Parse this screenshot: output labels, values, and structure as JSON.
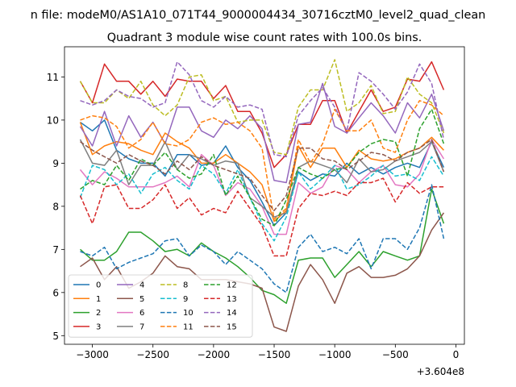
{
  "chart_data": {
    "type": "line",
    "suptitle": "n file: modeM0/AS1A10_071T44_9000004434_30716cztM0_level2_quad_clean",
    "title": "Quadrant 3 module wise count rates with 100.0s bins.",
    "xlabel": "",
    "ylabel": "",
    "offset_text": "+3.604e8",
    "xlim": [
      -3230,
      70
    ],
    "ylim": [
      4.8,
      11.7
    ],
    "xticks": [
      -3000,
      -2500,
      -2000,
      -1500,
      -1000,
      -500,
      0
    ],
    "xtick_labels": [
      "−3000",
      "−2500",
      "−2000",
      "−1500",
      "−1000",
      "−500",
      "0"
    ],
    "yticks": [
      5,
      6,
      7,
      8,
      9,
      10,
      11
    ],
    "ytick_labels": [
      "5",
      "6",
      "7",
      "8",
      "9",
      "10",
      "11"
    ],
    "grid": false,
    "legend_position": "lower-left",
    "legend_columns": 4,
    "x": [
      -3100,
      -3000,
      -2900,
      -2800,
      -2700,
      -2600,
      -2500,
      -2400,
      -2300,
      -2200,
      -2100,
      -2000,
      -1900,
      -1800,
      -1700,
      -1600,
      -1500,
      -1400,
      -1300,
      -1200,
      -1100,
      -1000,
      -900,
      -800,
      -700,
      -600,
      -500,
      -400,
      -300,
      -200,
      -100
    ],
    "series": [
      {
        "name": "0",
        "color": "#1f77b4",
        "style": "solid",
        "values": [
          9.95,
          9.75,
          10.0,
          9.3,
          9.1,
          9.0,
          9.0,
          8.7,
          9.2,
          9.2,
          8.95,
          9.0,
          9.4,
          8.9,
          8.6,
          8.1,
          7.55,
          7.85,
          8.8,
          8.6,
          8.75,
          8.7,
          9.0,
          8.75,
          8.9,
          8.75,
          8.9,
          9.0,
          8.9,
          9.5,
          8.9
        ]
      },
      {
        "name": "1",
        "color": "#ff7f0e",
        "style": "solid",
        "values": [
          9.95,
          9.2,
          9.4,
          9.5,
          9.45,
          9.3,
          9.2,
          9.7,
          9.5,
          9.35,
          9.0,
          9.0,
          9.2,
          9.0,
          8.8,
          8.5,
          7.65,
          7.9,
          9.4,
          8.9,
          9.35,
          9.35,
          8.9,
          9.3,
          9.1,
          9.05,
          9.1,
          9.25,
          9.35,
          9.6,
          9.3
        ]
      },
      {
        "name": "2",
        "color": "#2ca02c",
        "style": "solid",
        "values": [
          7.0,
          6.75,
          6.75,
          6.95,
          7.4,
          7.4,
          7.2,
          6.95,
          7.0,
          6.85,
          7.15,
          6.95,
          6.8,
          6.6,
          6.35,
          6.05,
          5.95,
          5.75,
          6.75,
          6.8,
          6.8,
          6.35,
          6.65,
          6.95,
          6.6,
          6.95,
          6.85,
          6.75,
          6.85,
          8.4,
          7.6
        ]
      },
      {
        "name": "3",
        "color": "#d62728",
        "style": "solid",
        "values": [
          10.9,
          10.4,
          11.3,
          10.9,
          10.9,
          10.6,
          10.9,
          10.55,
          10.95,
          10.9,
          10.9,
          10.5,
          10.8,
          10.2,
          10.2,
          9.7,
          8.9,
          9.2,
          9.9,
          9.9,
          10.45,
          10.45,
          9.7,
          10.2,
          10.7,
          10.2,
          10.3,
          10.95,
          10.9,
          11.35,
          10.7
        ]
      },
      {
        "name": "4",
        "color": "#9467bd",
        "style": "solid",
        "values": [
          9.85,
          9.4,
          10.2,
          9.4,
          10.1,
          9.6,
          9.95,
          9.45,
          10.3,
          10.3,
          9.75,
          9.6,
          10.0,
          9.8,
          10.1,
          9.8,
          8.6,
          8.55,
          9.9,
          9.95,
          10.85,
          9.85,
          9.7,
          10.05,
          10.4,
          10.1,
          9.7,
          10.4,
          10.05,
          10.6,
          9.75
        ]
      },
      {
        "name": "5",
        "color": "#8c564b",
        "style": "solid",
        "values": [
          6.6,
          6.8,
          6.3,
          6.6,
          6.1,
          6.25,
          6.45,
          6.85,
          6.6,
          6.55,
          6.3,
          6.3,
          6.3,
          6.25,
          6.2,
          6.1,
          5.2,
          5.1,
          6.15,
          6.65,
          6.3,
          5.75,
          6.45,
          6.6,
          6.35,
          6.35,
          6.4,
          6.55,
          6.85,
          7.45,
          7.85
        ]
      },
      {
        "name": "6",
        "color": "#e377c2",
        "style": "solid",
        "values": [
          8.85,
          8.5,
          8.8,
          8.65,
          8.45,
          8.45,
          8.45,
          8.55,
          8.7,
          8.45,
          9.2,
          8.95,
          8.25,
          8.55,
          8.4,
          8.0,
          7.35,
          7.35,
          8.55,
          8.3,
          8.45,
          8.95,
          8.85,
          8.55,
          8.8,
          8.95,
          8.5,
          8.45,
          8.75,
          9.55,
          9.1
        ]
      },
      {
        "name": "7",
        "color": "#7f7f7f",
        "style": "solid",
        "values": [
          9.55,
          9.0,
          8.95,
          9.3,
          8.5,
          8.95,
          8.95,
          9.5,
          8.85,
          9.2,
          9.1,
          8.95,
          9.05,
          9.0,
          8.2,
          8.0,
          7.75,
          7.85,
          8.9,
          9.05,
          8.95,
          8.85,
          8.55,
          9.1,
          8.8,
          8.85,
          9.05,
          9.15,
          9.25,
          9.5,
          8.8
        ]
      },
      {
        "name": "8",
        "color": "#bcbd22",
        "style": "dashed",
        "values": [
          10.9,
          10.4,
          10.4,
          10.7,
          10.5,
          10.9,
          10.35,
          10.1,
          10.35,
          11.0,
          11.05,
          10.45,
          10.55,
          9.95,
          10.0,
          10.0,
          9.25,
          9.2,
          10.3,
          10.7,
          10.7,
          11.4,
          10.2,
          10.4,
          10.8,
          10.15,
          10.2,
          11.0,
          10.6,
          10.4,
          9.7
        ]
      },
      {
        "name": "9",
        "color": "#17becf",
        "style": "dashed",
        "values": [
          8.2,
          8.95,
          8.85,
          8.5,
          8.75,
          8.3,
          8.75,
          8.9,
          8.6,
          8.4,
          8.95,
          8.75,
          8.3,
          8.85,
          8.2,
          7.6,
          7.2,
          7.75,
          8.8,
          8.4,
          8.65,
          8.95,
          8.4,
          8.5,
          8.7,
          8.95,
          8.7,
          8.75,
          8.6,
          9.15,
          8.7
        ]
      },
      {
        "name": "10",
        "color": "#1f77b4",
        "style": "dashed",
        "values": [
          6.95,
          6.85,
          7.05,
          6.55,
          6.7,
          6.8,
          6.9,
          7.2,
          7.25,
          6.85,
          7.1,
          6.95,
          6.65,
          6.95,
          6.75,
          6.55,
          6.2,
          6.0,
          7.05,
          7.35,
          6.95,
          7.05,
          6.9,
          7.25,
          6.55,
          7.25,
          7.25,
          7.0,
          7.5,
          8.5,
          7.25
        ]
      },
      {
        "name": "11",
        "color": "#ff7f0e",
        "style": "dashed",
        "values": [
          10.0,
          10.1,
          10.05,
          9.85,
          9.35,
          9.55,
          9.95,
          9.45,
          9.4,
          9.55,
          9.95,
          10.05,
          9.9,
          9.95,
          9.75,
          9.35,
          7.7,
          7.95,
          9.55,
          9.0,
          9.45,
          10.25,
          9.75,
          9.75,
          10.0,
          9.35,
          9.25,
          10.0,
          10.45,
          10.35,
          10.1
        ]
      },
      {
        "name": "12",
        "color": "#2ca02c",
        "style": "dashed",
        "values": [
          8.4,
          8.6,
          8.5,
          8.95,
          8.6,
          9.1,
          8.95,
          9.25,
          8.85,
          8.65,
          8.75,
          9.2,
          8.25,
          8.7,
          8.2,
          7.7,
          7.55,
          8.15,
          8.9,
          8.75,
          8.65,
          8.85,
          8.9,
          9.25,
          9.45,
          9.55,
          9.5,
          8.7,
          9.8,
          10.25,
          9.45
        ]
      },
      {
        "name": "13",
        "color": "#d62728",
        "style": "dashed",
        "values": [
          8.25,
          7.6,
          8.45,
          8.5,
          7.95,
          7.95,
          8.15,
          8.5,
          7.95,
          8.2,
          7.8,
          7.95,
          7.85,
          8.35,
          7.95,
          7.55,
          6.85,
          6.85,
          7.95,
          8.3,
          8.25,
          8.35,
          8.25,
          8.55,
          8.55,
          8.65,
          8.1,
          8.55,
          8.3,
          8.45,
          8.45
        ]
      },
      {
        "name": "14",
        "color": "#9467bd",
        "style": "dashed",
        "values": [
          10.45,
          10.35,
          10.45,
          10.7,
          10.55,
          10.5,
          10.3,
          10.4,
          11.35,
          11.05,
          10.45,
          10.3,
          10.55,
          10.3,
          10.35,
          10.25,
          9.2,
          9.15,
          10.1,
          10.45,
          10.75,
          10.3,
          9.75,
          11.1,
          10.9,
          10.6,
          10.25,
          10.65,
          11.3,
          10.85,
          9.55
        ]
      },
      {
        "name": "15",
        "color": "#8c564b",
        "style": "dashed",
        "values": [
          9.5,
          9.3,
          9.15,
          9.0,
          9.2,
          9.05,
          8.95,
          8.75,
          9.05,
          8.85,
          9.15,
          8.95,
          8.85,
          8.75,
          8.65,
          8.25,
          7.9,
          8.25,
          9.35,
          9.35,
          9.1,
          9.05,
          8.85,
          9.05,
          9.25,
          9.2,
          9.05,
          9.25,
          9.35,
          9.55,
          8.8
        ]
      }
    ]
  }
}
